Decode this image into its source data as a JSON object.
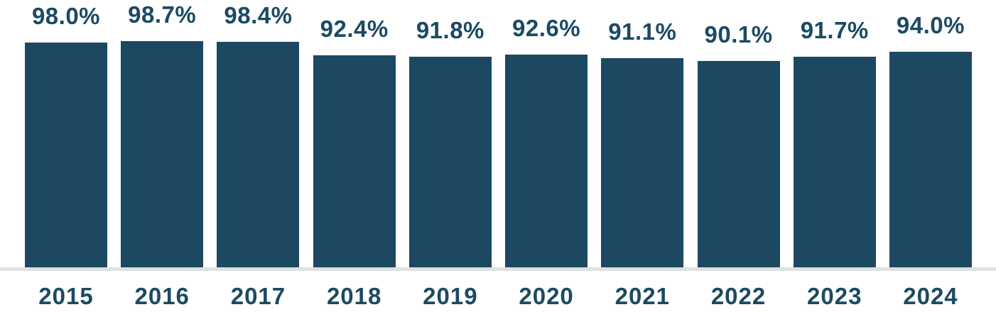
{
  "chart_data": {
    "type": "bar",
    "categories": [
      "2015",
      "2016",
      "2017",
      "2018",
      "2019",
      "2020",
      "2021",
      "2022",
      "2023",
      "2024"
    ],
    "values": [
      98.0,
      98.7,
      98.4,
      92.4,
      91.8,
      92.6,
      91.1,
      90.1,
      91.7,
      94.0
    ],
    "value_labels": [
      "98.0%",
      "98.7%",
      "98.4%",
      "92.4%",
      "91.8%",
      "92.6%",
      "91.1%",
      "90.1%",
      "91.7%",
      "94.0%"
    ],
    "title": "",
    "xlabel": "",
    "ylabel": "",
    "ylim": [
      0,
      100
    ],
    "grid": false,
    "legend": false,
    "colors": {
      "bar": "#1C4961",
      "label_text": "#1B4A63",
      "baseline": "#DEE0E2",
      "background": "#ffffff"
    }
  }
}
